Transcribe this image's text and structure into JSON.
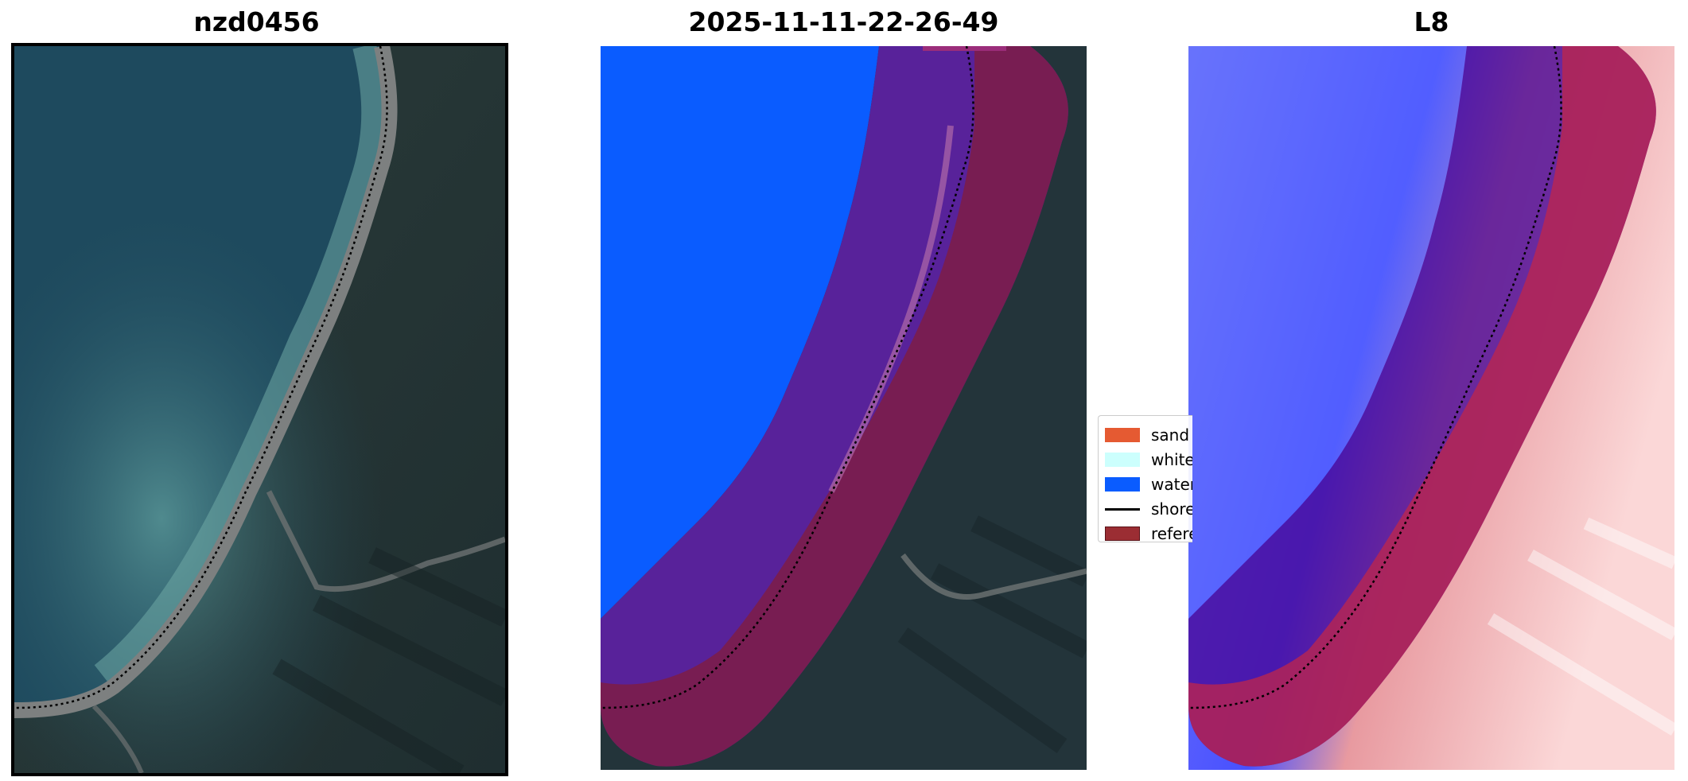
{
  "panels": [
    {
      "title": "nzd0456"
    },
    {
      "title": "2025-11-11-22-26-49"
    },
    {
      "title": "L8"
    }
  ],
  "legend": {
    "items": [
      {
        "label": "sand",
        "color": "#e55a32"
      },
      {
        "label": "white-water",
        "color": "#ccfffd"
      },
      {
        "label": "water",
        "color": "#0a5cff"
      },
      {
        "label": "shoreline",
        "color": "#000000"
      },
      {
        "label": "reference shoreline buffer",
        "color": "#9b2d33"
      }
    ]
  },
  "colors": {
    "water_class": "#0a5cff",
    "buffer_overlay": "#8b1e5a",
    "ocean_rgb": "#1f4a5c",
    "land_rgb": "#243436",
    "beach_rgb": "#7c7f80",
    "mndwi_water": "#3a46ff",
    "mndwi_land": "#f4a0a0"
  }
}
